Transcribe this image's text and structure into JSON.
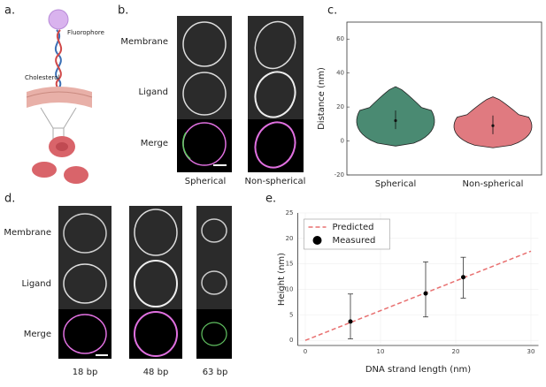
{
  "panel_labels": [
    "a.",
    "b.",
    "c.",
    "d.",
    "e."
  ],
  "illustration": {
    "fluorophore": "Fluorophore",
    "cholesterol": "Cholesterol"
  },
  "panel_b": {
    "rows": [
      "Membrane",
      "Ligand",
      "Merge"
    ],
    "columns": [
      "Spherical",
      "Non-spherical"
    ]
  },
  "panel_d": {
    "rows": [
      "Membrane",
      "Ligand",
      "Merge"
    ],
    "columns": [
      "18 bp",
      "48 bp",
      "63 bp"
    ]
  },
  "chart_data": [
    {
      "type": "violin",
      "ylabel": "Distance (nm)",
      "categories": [
        "Spherical",
        "Non-spherical"
      ],
      "values": [
        12,
        9
      ],
      "error_minus": [
        5,
        5
      ],
      "error_plus": [
        6,
        6
      ],
      "min": [
        -3,
        -4
      ],
      "max": [
        32,
        26
      ],
      "colors": [
        "#4a8a72",
        "#e07a80"
      ],
      "ylim": [
        -20,
        70
      ],
      "yticks": [
        -20,
        0,
        20,
        40,
        60
      ]
    },
    {
      "type": "line",
      "xlabel": "DNA strand length (nm)",
      "ylabel": "Height (nm)",
      "xlim": [
        -1,
        31
      ],
      "xticks": [
        0,
        10,
        20,
        30
      ],
      "ylim": [
        -1,
        25
      ],
      "yticks": [
        0,
        5,
        10,
        15,
        20,
        25
      ],
      "grid": true,
      "legend": "top-left",
      "series": [
        {
          "name": "Predicted",
          "type": "line",
          "style": "dashed",
          "color": "#e87070",
          "x": [
            0,
            30
          ],
          "values": [
            0,
            17.5
          ]
        },
        {
          "name": "Measured",
          "type": "scatter",
          "color": "#000000",
          "x": [
            6,
            16,
            21
          ],
          "values": [
            3.7,
            9.2,
            12.4
          ],
          "error_minus": [
            3.4,
            4.6,
            4.1
          ],
          "error_plus": [
            5.4,
            6.2,
            3.9
          ]
        }
      ]
    }
  ]
}
